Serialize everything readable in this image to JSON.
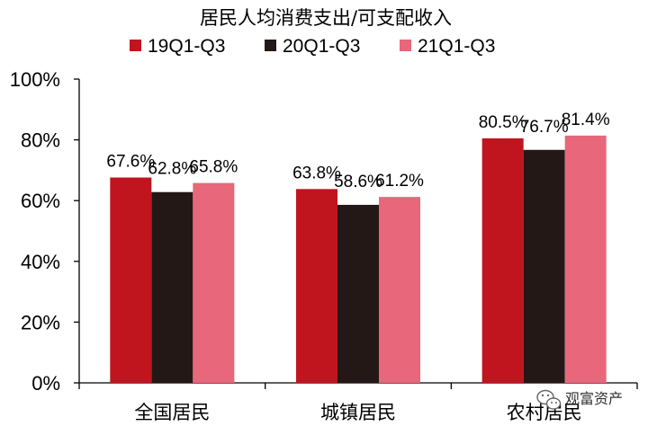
{
  "chart_data": {
    "type": "bar",
    "title": "居民人均消费支出/可支配收入",
    "categories": [
      "全国居民",
      "城镇居民",
      "农村居民"
    ],
    "series": [
      {
        "name": "19Q1-Q3",
        "color": "#C0151F",
        "values": [
          67.6,
          63.8,
          80.5
        ],
        "labels": [
          "67.6%",
          "63.8%",
          "80.5%"
        ]
      },
      {
        "name": "20Q1-Q3",
        "color": "#231815",
        "values": [
          62.8,
          58.6,
          76.7
        ],
        "labels": [
          "62.8%",
          "58.6%",
          "76.7%"
        ]
      },
      {
        "name": "21Q1-Q3",
        "color": "#E8677A",
        "values": [
          65.8,
          61.2,
          81.4
        ],
        "labels": [
          "65.8%",
          "61.2%",
          "81.4%"
        ]
      }
    ],
    "ylim": [
      0,
      100
    ],
    "yticks": [
      "0%",
      "20%",
      "40%",
      "60%",
      "80%",
      "100%"
    ],
    "legend_position": "top",
    "grid": false
  },
  "watermark": {
    "text": "观富资产",
    "icon": "wechat-icon"
  }
}
